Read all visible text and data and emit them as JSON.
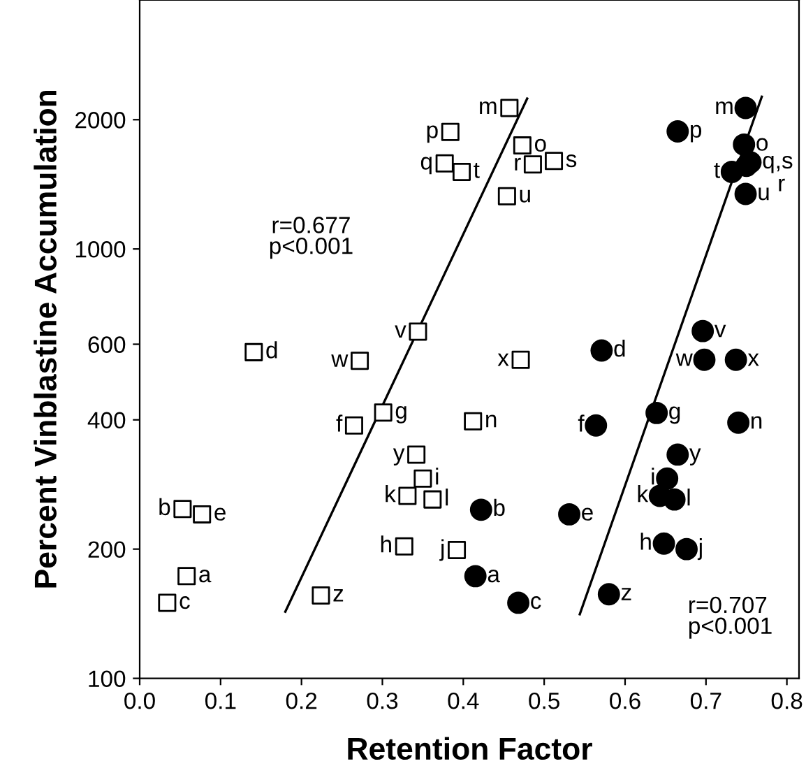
{
  "chart_data": {
    "type": "scatter",
    "xlabel": "Retention Factor",
    "ylabel": "Percent Vinblastine Accumulation",
    "log": "y",
    "xlim": [
      0,
      0.815
    ],
    "ylim": [
      100,
      3800
    ],
    "xticks": [
      {
        "value": 0,
        "label": "0.0"
      },
      0.1,
      0.2,
      0.3,
      0.4,
      0.5,
      0.6,
      0.7,
      0.8
    ],
    "yticks": [
      100,
      200,
      400,
      600,
      1000,
      2000
    ],
    "grid": false,
    "annotations": [
      "r=0.677\np<0.001",
      "r=0.707\np<0.001"
    ],
    "series": [
      {
        "marker": "square",
        "color": "#000000",
        "x": [
          0.058,
          0.053,
          0.034,
          0.141,
          0.077,
          0.265,
          0.301,
          0.327,
          0.35,
          0.392,
          0.331,
          0.362,
          0.457,
          0.412,
          0.473,
          0.384,
          0.377,
          0.486,
          0.512,
          0.398,
          0.454,
          0.344,
          0.272,
          0.471,
          0.342,
          0.224
        ],
        "values": [
          173,
          248,
          150,
          575,
          241,
          388,
          416,
          203,
          292,
          199,
          266,
          261,
          2130,
          397,
          1742,
          1873,
          1582,
          1574,
          1603,
          1512,
          1327,
          642,
          549,
          552,
          332,
          156
        ],
        "value_labels": [
          "a",
          "b",
          "c",
          "d",
          "e",
          "f",
          "g",
          "h",
          "i",
          "j",
          "k",
          "l",
          "m",
          "n",
          "o",
          "p",
          "q",
          "r",
          "s",
          "t",
          "u",
          "v",
          "w",
          "x",
          "y",
          "z"
        ]
      },
      {
        "marker": "circle",
        "color": "#000000",
        "x": [
          0.415,
          0.422,
          0.468,
          0.571,
          0.531,
          0.564,
          0.639,
          0.648,
          0.652,
          0.676,
          0.643,
          0.661,
          0.749,
          0.74,
          0.747,
          0.665,
          0.755,
          0.75,
          0.732,
          0.749,
          0.696,
          0.698,
          0.737,
          0.665,
          0.58
        ],
        "values": [
          173,
          247,
          150,
          580,
          241,
          388,
          415,
          206,
          292,
          200,
          266,
          261,
          2130,
          394,
          1750,
          1878,
          1591,
          1562,
          1512,
          1343,
          644,
          552,
          552,
          332,
          157
        ],
        "value_labels": [
          "a",
          "b",
          "c",
          "d",
          "e",
          "f",
          "g",
          "h",
          "i",
          "j",
          "k",
          "l",
          "m",
          "n",
          "o",
          "p",
          "q,s",
          "r",
          "t",
          "u",
          "v",
          "w",
          "x",
          "y",
          "z"
        ]
      },
      {
        "type": "line",
        "color": "#000000",
        "x": [
          0.18,
          0.479
        ],
        "values": [
          143,
          2240
        ]
      },
      {
        "type": "line",
        "color": "#000000",
        "x": [
          0.544,
          0.769
        ],
        "values": [
          141,
          2263
        ]
      }
    ]
  }
}
